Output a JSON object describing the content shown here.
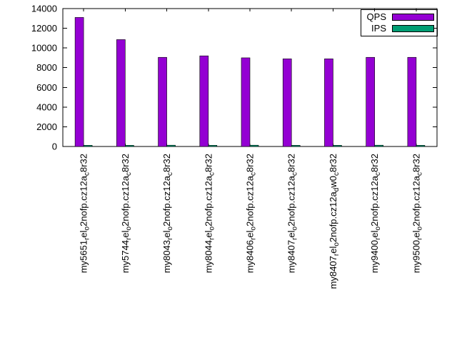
{
  "chart_data": {
    "type": "bar",
    "title": "",
    "xlabel": "",
    "ylabel": "",
    "ylim": [
      0,
      14000
    ],
    "ytick_step": 2000,
    "ytick_labels": [
      "0",
      "2000",
      "4000",
      "6000",
      "8000",
      "10000",
      "12000",
      "14000"
    ],
    "grid": false,
    "legend_position": "top-right",
    "legend_box": true,
    "categories_enhanced": [
      "my5651_rel_o2nofp.cz12a_c8r32",
      "my5744_rel_o2nofp.cz12a_c8r32",
      "my8043_rel_o2nofp.cz12a_c8r32",
      "my8044_rel_o2nofp.cz12a_c8r32",
      "my8406_rel_o2nofp.cz12a_c8r32",
      "my8407_rel_o2nofp.cz12a_c8r32",
      "my8407_rel_o2nofp.cz12a_dw0_c8r32",
      "my9400_rel_o2nofp.cz12a_c8r32",
      "my9500_rel_o2nofp.cz12a_c8r32"
    ],
    "series": [
      {
        "name": "QPS",
        "color": "#9400d3",
        "values": [
          13100,
          10850,
          9050,
          9200,
          9000,
          8900,
          8900,
          9050,
          9050
        ]
      },
      {
        "name": "IPS",
        "color": "#009e73",
        "values": [
          120,
          120,
          130,
          120,
          130,
          120,
          120,
          130,
          120
        ]
      }
    ],
    "colors": {
      "background": "#ffffff",
      "border": "#000000",
      "text": "#000000"
    }
  }
}
